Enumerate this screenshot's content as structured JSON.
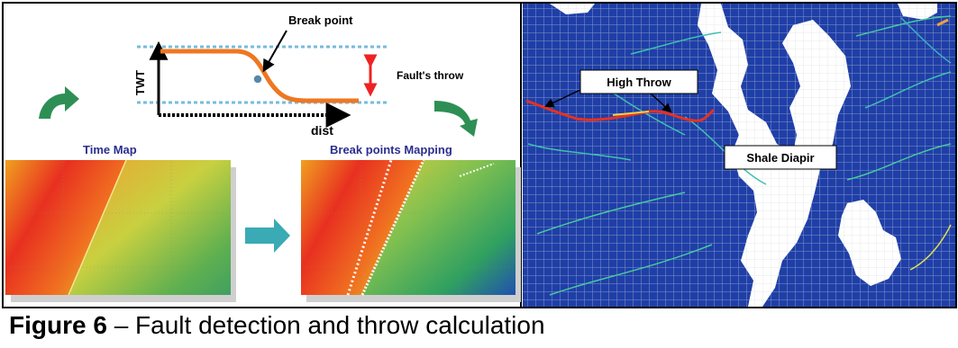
{
  "schematic": {
    "break_point_label": "Break point",
    "y_axis_label": "TWT",
    "x_axis_label": "dist",
    "throw_label": "Fault's throw"
  },
  "panels": {
    "time_map_title": "Time Map",
    "break_points_title": "Break points Mapping"
  },
  "seismic_map": {
    "high_throw_label": "High Throw",
    "shale_diapir_label": "Shale Diapir"
  },
  "caption": {
    "figure_number": "Figure 6",
    "text": " – Fault detection and throw calculation"
  },
  "colors": {
    "curve": "#ee7722",
    "dashed_level": "#77bbdd",
    "throw_arrow": "#ee2222",
    "arrow_green": "#2e8f55",
    "arrow_teal": "#3aaab5",
    "panel_title": "#2b2e8f",
    "map_blue": "#1f3fa8",
    "diapir": "#ffffff",
    "border": "#000000"
  }
}
